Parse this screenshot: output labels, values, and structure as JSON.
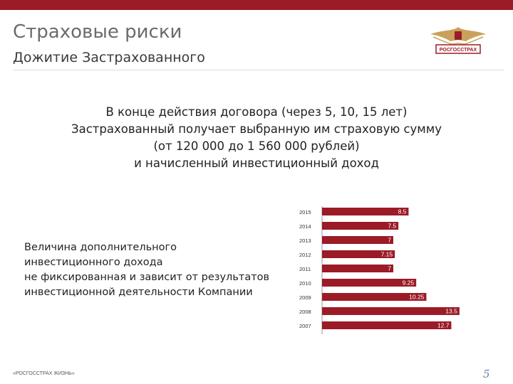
{
  "header": {
    "title": "Страховые риски",
    "subtitle": "Дожитие Застрахованного",
    "logo_text": "РОСГОССТРАХ",
    "accent_color": "#9b1b26"
  },
  "main_text": [
    "В конце действия договора (через 5, 10, 15 лет)",
    "Застрахованный получает выбранную им страховую сумму",
    "(от 120 000 до 1 560 000 рублей)",
    "и начисленный инвестиционный доход"
  ],
  "side_text": [
    "Величина дополнительного",
    "инвестиционного дохода",
    "не фиксированная и зависит от результатов",
    "инвестиционной деятельности Компании"
  ],
  "chart_data": {
    "type": "bar",
    "orientation": "horizontal",
    "categories": [
      "2015",
      "2014",
      "2013",
      "2012",
      "2011",
      "2010",
      "2009",
      "2008",
      "2007"
    ],
    "values": [
      8.5,
      7.5,
      7,
      7.15,
      7,
      9.25,
      10.25,
      13.5,
      12.7
    ],
    "labels": [
      "8.5",
      "7.5",
      "7",
      "7.15",
      "7",
      "9.25",
      "10.25",
      "13.5",
      "12.7"
    ],
    "bar_color": "#9b1b26",
    "xlim": [
      0,
      14
    ],
    "title": "",
    "xlabel": "",
    "ylabel": ""
  },
  "footer": {
    "company": "«РОСГОССТРАХ ЖИЗНЬ»",
    "page_number": "5"
  }
}
